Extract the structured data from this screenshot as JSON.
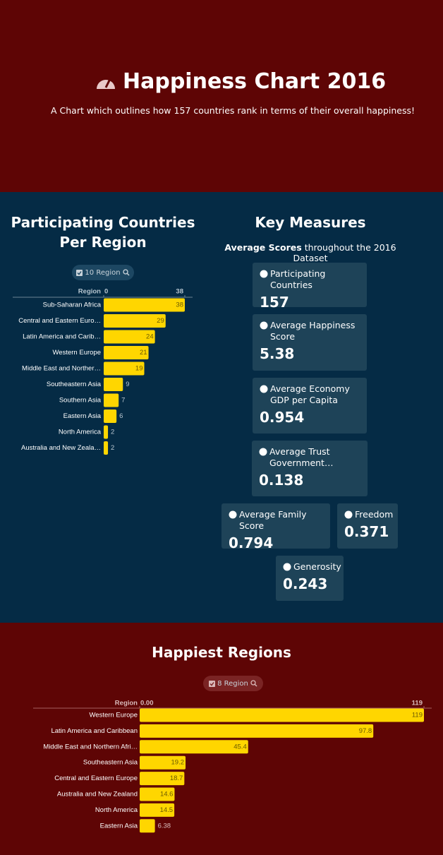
{
  "header": {
    "title": "Happiness Chart 2016",
    "subtitle": "A Chart which outlines how 157 countries rank in terms of their overall happiness!"
  },
  "key_measures": {
    "title": "Key Measures",
    "subtitle_bold": "Average Scores",
    "subtitle_rest": "throughout the 2016 Dataset",
    "cards": [
      {
        "label": "Participating Countries",
        "value": 157
      },
      {
        "label": "Average Happiness Score",
        "value": 5.38
      },
      {
        "label": "Average Economy GDP per Capita",
        "value": 0.954
      },
      {
        "label": "Average Trust Government…",
        "value": 0.138
      },
      {
        "label": "Average Family Score",
        "value": 0.794
      },
      {
        "label": "Freedom",
        "value": 0.371
      },
      {
        "label": "Generosity",
        "value": 0.243
      }
    ]
  },
  "chart_data": [
    {
      "type": "bar",
      "orientation": "horizontal",
      "title": "Participating Countries Per Region",
      "filter": "10 Region",
      "axis_label": "Region",
      "categories": [
        "Sub-Saharan Africa",
        "Central and Eastern Euro…",
        "Latin America and Carib…",
        "Western Europe",
        "Middle East and Norther…",
        "Southeastern Asia",
        "Southern Asia",
        "Eastern Asia",
        "North America",
        "Australia and New Zeala…"
      ],
      "values": [
        38,
        29,
        24,
        21,
        19,
        9,
        7,
        6,
        2,
        2
      ],
      "color": "#ffd600",
      "xlim": [
        0,
        38
      ],
      "xticks": [
        0,
        38
      ]
    },
    {
      "type": "bar",
      "orientation": "horizontal",
      "title": "Happiest Regions",
      "filter": "8 Region",
      "axis_label": "Region",
      "categories": [
        "Western Europe",
        "Latin America and Caribbean",
        "Middle East and Northern Afri…",
        "Southeastern Asia",
        "Central and Eastern Europe",
        "Australia and New Zealand",
        "North America",
        "Eastern Asia"
      ],
      "values": [
        119,
        97.8,
        45.4,
        19.2,
        18.7,
        14.6,
        14.5,
        6.38
      ],
      "color": "#ffd600",
      "xlim": [
        0,
        119
      ],
      "xticks": [
        {
          "value": 0,
          "label": "0.00"
        },
        119
      ]
    }
  ]
}
